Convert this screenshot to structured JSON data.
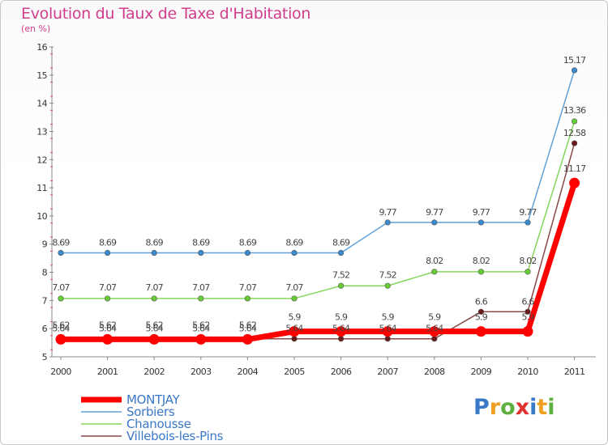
{
  "chart_data": {
    "type": "line",
    "title": "Evolution du Taux de Taxe d'Habitation",
    "subtitle": "(en %)",
    "x": [
      "2000",
      "2001",
      "2002",
      "2003",
      "2004",
      "2005",
      "2006",
      "2007",
      "2008",
      "2009",
      "2010",
      "2011"
    ],
    "ylim": [
      5,
      16
    ],
    "yticks": [
      5,
      6,
      7,
      8,
      9,
      10,
      11,
      12,
      13,
      14,
      15,
      16
    ],
    "grid": false,
    "legend": "bottom-left",
    "series": [
      {
        "name": "MONTJAY",
        "color": "#ff0000",
        "values": [
          5.62,
          5.62,
          5.62,
          5.62,
          5.62,
          5.9,
          5.9,
          5.9,
          5.9,
          5.9,
          5.9,
          11.17
        ],
        "labels": [
          "5.62",
          "5.62",
          "5.62",
          "5.62",
          "5.62",
          "5.9",
          "5.9",
          "5.9",
          "5.9",
          "5.9",
          "5.9",
          "11.17"
        ]
      },
      {
        "name": "Sorbiers",
        "color": "#3a8ad0",
        "values": [
          8.69,
          8.69,
          8.69,
          8.69,
          8.69,
          8.69,
          8.69,
          9.77,
          9.77,
          9.77,
          9.77,
          15.17
        ],
        "labels": [
          "8.69",
          "8.69",
          "8.69",
          "8.69",
          "8.69",
          "8.69",
          "8.69",
          "9.77",
          "9.77",
          "9.77",
          "9.77",
          "15.17"
        ]
      },
      {
        "name": "Chanousse",
        "color": "#66cc33",
        "values": [
          7.07,
          7.07,
          7.07,
          7.07,
          7.07,
          7.07,
          7.52,
          7.52,
          8.02,
          8.02,
          8.02,
          13.36
        ],
        "labels": [
          "7.07",
          "7.07",
          "7.07",
          "7.07",
          "7.07",
          "7.07",
          "7.52",
          "7.52",
          "8.02",
          "8.02",
          "8.02",
          "13.36"
        ]
      },
      {
        "name": "Villebois-les-Pins",
        "color": "#6a1a1a",
        "values": [
          5.64,
          5.64,
          5.64,
          5.64,
          5.64,
          5.64,
          5.64,
          5.64,
          5.64,
          6.6,
          6.6,
          12.58
        ],
        "labels": [
          "5.64",
          "5.64",
          "5.64",
          "5.64",
          "5.64",
          "5.64",
          "5.64",
          "5.64",
          "5.64",
          "6.6",
          "6.6",
          "12.58"
        ]
      }
    ]
  },
  "logo": {
    "letters": [
      "P",
      "r",
      "o",
      "x",
      "i",
      "t",
      "i"
    ],
    "colors": [
      "#3a78c8",
      "#f0a020",
      "#60b040",
      "#e03030",
      "#3a78c8",
      "#f0a020",
      "#60b040"
    ]
  }
}
